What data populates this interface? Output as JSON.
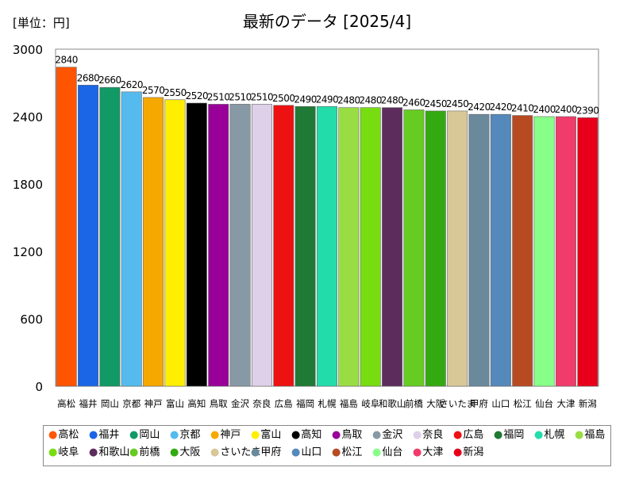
{
  "unit_label": "[単位：円]",
  "chart_data": {
    "type": "bar",
    "title": "最新のデータ [2025/4]",
    "xlabel": "",
    "ylabel": "",
    "ylim": [
      0,
      3000
    ],
    "yticks": [
      0,
      600,
      1200,
      1800,
      2400,
      3000
    ],
    "grid": false,
    "legend_position": "bottom",
    "categories": [
      "高松",
      "福井",
      "岡山",
      "京都",
      "神戸",
      "富山",
      "高知",
      "鳥取",
      "金沢",
      "奈良",
      "広島",
      "福岡",
      "札幌",
      "福島",
      "岐阜",
      "和歌山",
      "前橋",
      "大阪",
      "さいたま",
      "甲府",
      "山口",
      "松江",
      "仙台",
      "大津",
      "新潟"
    ],
    "axis_labels": [
      "高松",
      "福井",
      "岡山",
      "京都",
      "神戸",
      "富山",
      "高知",
      "鳥取",
      "金沢",
      "奈良",
      "広島",
      "福岡",
      "札幌",
      "福島",
      "岐阜",
      "和歌山",
      "前橋",
      "大阪",
      "さいたま",
      "甲府",
      "山口",
      "松江",
      "仙台",
      "大津",
      "新潟"
    ],
    "values": [
      2840,
      2680,
      2660,
      2620,
      2570,
      2550,
      2520,
      2510,
      2510,
      2510,
      2500,
      2490,
      2490,
      2480,
      2480,
      2480,
      2460,
      2450,
      2450,
      2420,
      2420,
      2410,
      2400,
      2400,
      2390
    ],
    "value_labels": [
      "2840",
      "2680",
      "2660",
      "2620",
      "2570",
      "2550",
      "2520",
      "2510",
      "2510",
      "2510",
      "2500",
      "2490",
      "2490",
      "2480",
      "2480",
      "2480",
      "2460",
      "2450",
      "2450",
      "2420",
      "2420",
      "2410",
      "2400",
      "2400",
      "2390"
    ],
    "colors": [
      "#ff5500",
      "#1a66e6",
      "#119966",
      "#55bbee",
      "#f5a800",
      "#ffee00",
      "#000000",
      "#990099",
      "#8899a6",
      "#ddd0e8",
      "#ee1111",
      "#1e7a35",
      "#22ddaa",
      "#99dd44",
      "#77dd11",
      "#5c2d5c",
      "#66cc22",
      "#33aa11",
      "#d8c898",
      "#6a8a9c",
      "#5588bb",
      "#b84a22",
      "#88ff88",
      "#f03c6a",
      "#e8001a"
    ]
  }
}
